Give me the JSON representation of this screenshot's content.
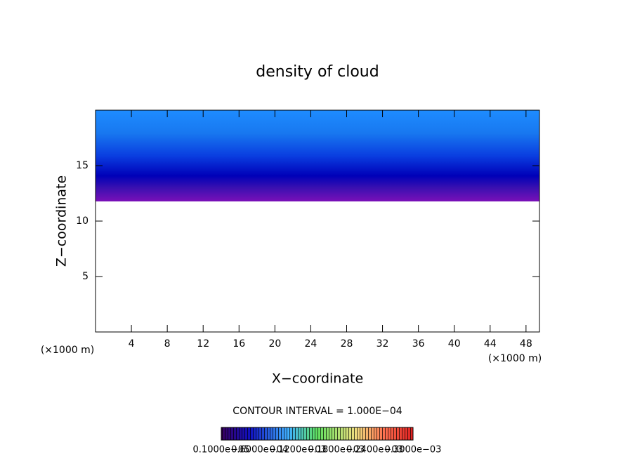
{
  "chart_data": {
    "type": "contour",
    "title": "density of cloud",
    "x_label": "X−coordinate",
    "y_label": "Z−coordinate",
    "x_unit": "(×1000 m)",
    "y_unit": "(×1000 m)",
    "xlim": [
      0,
      49.5
    ],
    "xticks": [
      4,
      8,
      12,
      16,
      20,
      24,
      28,
      32,
      36,
      40,
      44,
      48
    ],
    "ylim": [
      0,
      20
    ],
    "yticks": [
      5,
      10,
      15
    ],
    "contour_interval": "CONTOUR INTERVAL = 1.000E−04",
    "colorbar_labels": [
      "0.1000e−05",
      "0.6000e−04",
      "0.1200e−03",
      "0.1800e−03",
      "0.2400e−03",
      "0.3000e−03"
    ]
  }
}
